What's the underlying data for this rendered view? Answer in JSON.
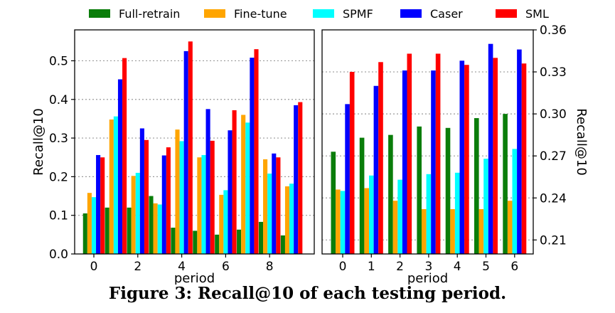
{
  "caption": "Figure 3: Recall@10 of each testing period.",
  "legend": [
    {
      "name": "Full-retrain",
      "color": "#0a7d0a"
    },
    {
      "name": "Fine-tune",
      "color": "#ffa500"
    },
    {
      "name": "SPMF",
      "color": "#00ffff"
    },
    {
      "name": "Caser",
      "color": "#0000ff"
    },
    {
      "name": "SML",
      "color": "#ff0000"
    }
  ],
  "chart_data": [
    {
      "type": "bar",
      "xlabel": "period",
      "ylabel": "Recall@10",
      "ylim": [
        0.0,
        0.58
      ],
      "yticks": [
        0.0,
        0.1,
        0.2,
        0.3,
        0.4,
        0.5
      ],
      "ytick_labels": [
        "0.0",
        "0.1",
        "0.2",
        "0.3",
        "0.4",
        "0.5"
      ],
      "xticks": [
        0,
        2,
        4,
        6,
        8
      ],
      "xtick_labels": [
        "0",
        "2",
        "4",
        "6",
        "8"
      ],
      "grid": "horizontal dotted",
      "categories": [
        0,
        1,
        2,
        3,
        4,
        5,
        6,
        7,
        8,
        9
      ],
      "series": [
        {
          "name": "Full-retrain",
          "color": "#0a7d0a",
          "values": [
            0.105,
            0.12,
            0.12,
            0.15,
            0.068,
            0.06,
            0.05,
            0.063,
            0.083,
            0.048
          ]
        },
        {
          "name": "Fine-tune",
          "color": "#ffa500",
          "values": [
            0.158,
            0.348,
            0.202,
            0.131,
            0.322,
            0.25,
            0.153,
            0.36,
            0.245,
            0.175
          ]
        },
        {
          "name": "SPMF",
          "color": "#00ffff",
          "values": [
            0.147,
            0.356,
            0.21,
            0.128,
            0.292,
            0.256,
            0.165,
            0.34,
            0.208,
            0.182
          ]
        },
        {
          "name": "Caser",
          "color": "#0000ff",
          "values": [
            0.256,
            0.452,
            0.325,
            0.255,
            0.525,
            0.375,
            0.32,
            0.508,
            0.26,
            0.385
          ]
        },
        {
          "name": "SML",
          "color": "#ff0000",
          "values": [
            0.25,
            0.507,
            0.295,
            0.276,
            0.55,
            0.293,
            0.372,
            0.53,
            0.25,
            0.393
          ]
        }
      ]
    },
    {
      "type": "bar",
      "xlabel": "period",
      "ylabel": "Recall@10",
      "ylabel_side": "right",
      "ylim": [
        0.2,
        0.36
      ],
      "yticks": [
        0.21,
        0.24,
        0.27,
        0.3,
        0.33,
        0.36
      ],
      "ytick_labels": [
        "0.21",
        "0.24",
        "0.27",
        "0.30",
        "0.33",
        "0.36"
      ],
      "xticks": [
        0,
        1,
        2,
        3,
        4,
        5,
        6
      ],
      "xtick_labels": [
        "0",
        "1",
        "2",
        "3",
        "4",
        "5",
        "6"
      ],
      "grid": "horizontal dotted",
      "categories": [
        0,
        1,
        2,
        3,
        4,
        5,
        6
      ],
      "series": [
        {
          "name": "Full-retrain",
          "color": "#0a7d0a",
          "values": [
            0.273,
            0.283,
            0.285,
            0.291,
            0.29,
            0.297,
            0.3
          ]
        },
        {
          "name": "Fine-tune",
          "color": "#ffa500",
          "values": [
            0.246,
            0.247,
            0.238,
            0.232,
            0.232,
            0.232,
            0.238
          ]
        },
        {
          "name": "SPMF",
          "color": "#00ffff",
          "values": [
            0.245,
            0.256,
            0.253,
            0.257,
            0.258,
            0.268,
            0.275
          ]
        },
        {
          "name": "Caser",
          "color": "#0000ff",
          "values": [
            0.307,
            0.32,
            0.331,
            0.331,
            0.338,
            0.35,
            0.346
          ]
        },
        {
          "name": "SML",
          "color": "#ff0000",
          "values": [
            0.33,
            0.337,
            0.343,
            0.343,
            0.335,
            0.34,
            0.336
          ]
        }
      ]
    }
  ]
}
